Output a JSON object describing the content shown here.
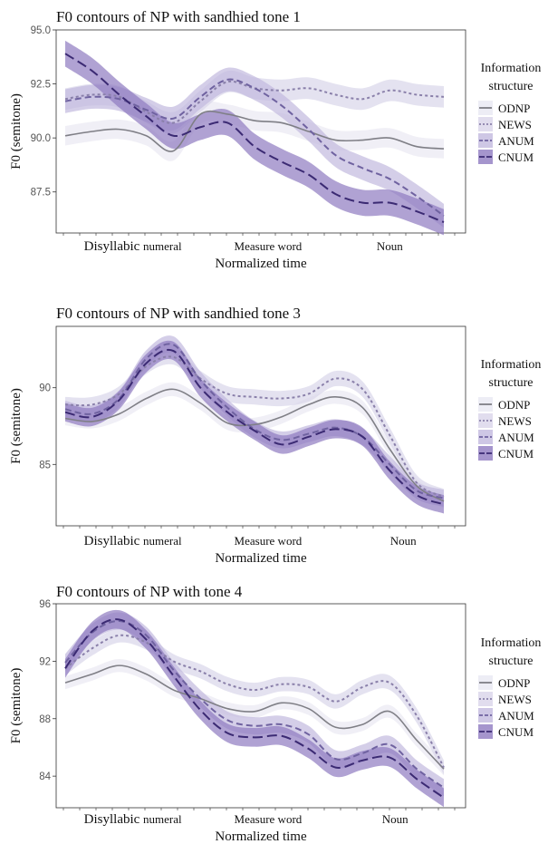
{
  "figure": {
    "legend_title_lines": [
      "Information",
      "structure"
    ],
    "xlabel": "Normalized time",
    "ylabel": "F0 (semitone)",
    "x_categories": [
      "Disyllabic numeral",
      "Measure word",
      "Noun"
    ]
  },
  "series_styles": [
    {
      "name": "ODNP",
      "color": "#7f7f86",
      "ribbon": "#e9e8f2",
      "dash": "solid"
    },
    {
      "name": "NEWS",
      "color": "#8a80aa",
      "ribbon": "#d9d5ea",
      "dash": "dotted"
    },
    {
      "name": "ANUM",
      "color": "#6f62a0",
      "ribbon": "#c2b9de",
      "dash": "dashed"
    },
    {
      "name": "CNUM",
      "color": "#3b2a73",
      "ribbon": "#8e7bc0",
      "dash": "longdash"
    }
  ],
  "chart_data": [
    {
      "type": "line",
      "title": "F0 contours of NP with sandhied tone 1",
      "xlabel": "Normalized time",
      "ylabel": "F0 (semitone)",
      "ylim": [
        85.6,
        95.0
      ],
      "yticks": [
        87.5,
        90.0,
        92.5,
        95.0
      ],
      "ytick_labels": [
        "87.5",
        "90.0",
        "92.5",
        "95.0"
      ],
      "x": [
        0,
        1,
        2,
        3,
        4,
        5,
        6,
        7,
        8,
        9,
        10,
        11,
        12,
        13,
        14
      ],
      "category_positions": [
        2.5,
        7.5,
        12
      ],
      "series": [
        {
          "name": "ODNP",
          "values": [
            90.1,
            90.3,
            90.4,
            90.1,
            89.4,
            91.1,
            91.1,
            90.8,
            90.7,
            90.3,
            89.9,
            89.9,
            90.0,
            89.6,
            89.5
          ],
          "ci": 0.45
        },
        {
          "name": "NEWS",
          "values": [
            91.8,
            92.0,
            91.9,
            91.2,
            90.7,
            91.7,
            92.6,
            92.3,
            92.2,
            92.3,
            92.0,
            91.8,
            92.2,
            92.0,
            91.9
          ],
          "ci": 0.5
        },
        {
          "name": "ANUM",
          "values": [
            91.7,
            91.9,
            91.8,
            91.3,
            90.9,
            91.9,
            92.7,
            92.3,
            91.5,
            90.4,
            89.2,
            88.6,
            88.1,
            87.3,
            86.4
          ],
          "ci": 0.55
        },
        {
          "name": "CNUM",
          "values": [
            93.9,
            93.1,
            92.0,
            91.0,
            90.1,
            90.5,
            90.7,
            89.6,
            88.9,
            88.3,
            87.4,
            87.0,
            87.0,
            86.6,
            86.1
          ],
          "ci": 0.6
        }
      ]
    },
    {
      "type": "line",
      "title": "F0 contours of NP with sandhied tone 3",
      "xlabel": "Normalized time",
      "ylabel": "F0 (semitone)",
      "ylim": [
        81.0,
        94.0
      ],
      "yticks": [
        85,
        90
      ],
      "ytick_labels": [
        "85",
        "90"
      ],
      "x": [
        0,
        1,
        2,
        3,
        4,
        5,
        6,
        7,
        8,
        9,
        10,
        11,
        12,
        13,
        14
      ],
      "category_positions": [
        2.5,
        7.5,
        12.5
      ],
      "series": [
        {
          "name": "ODNP",
          "values": [
            88.0,
            87.8,
            88.3,
            89.3,
            89.9,
            89.0,
            87.7,
            87.6,
            88.1,
            88.9,
            89.4,
            88.7,
            86.0,
            83.6,
            82.6
          ],
          "ci": 0.45
        },
        {
          "name": "NEWS",
          "values": [
            88.9,
            88.9,
            89.6,
            91.4,
            92.0,
            90.6,
            89.6,
            89.4,
            89.3,
            89.6,
            90.6,
            89.9,
            86.9,
            83.8,
            82.9
          ],
          "ci": 0.5
        },
        {
          "name": "ANUM",
          "values": [
            88.6,
            88.3,
            89.3,
            91.9,
            92.8,
            90.5,
            88.7,
            87.3,
            86.6,
            87.0,
            87.4,
            86.8,
            85.0,
            83.3,
            82.8
          ],
          "ci": 0.55
        },
        {
          "name": "CNUM",
          "values": [
            88.4,
            88.1,
            89.2,
            91.6,
            92.4,
            90.0,
            88.4,
            87.2,
            86.3,
            86.8,
            87.3,
            86.8,
            84.6,
            83.0,
            82.4
          ],
          "ci": 0.6
        }
      ]
    },
    {
      "type": "line",
      "title": "F0 contours of NP with tone 4",
      "xlabel": "Normalized time",
      "ylabel": "F0 (semitone)",
      "ylim": [
        81.8,
        96.0
      ],
      "yticks": [
        84,
        88,
        92,
        96
      ],
      "ytick_labels": [
        "84",
        "88",
        "92",
        "96"
      ],
      "x": [
        0,
        1,
        2,
        3,
        4,
        5,
        6,
        7,
        8,
        9,
        10,
        11,
        12,
        13,
        14
      ],
      "category_positions": [
        2.5,
        7.5,
        12.2
      ],
      "series": [
        {
          "name": "ODNP",
          "values": [
            90.5,
            91.1,
            91.7,
            91.1,
            90.0,
            89.4,
            88.7,
            88.5,
            89.1,
            88.7,
            87.4,
            87.6,
            88.5,
            86.5,
            84.5
          ],
          "ci": 0.45
        },
        {
          "name": "NEWS",
          "values": [
            91.5,
            92.9,
            93.8,
            93.3,
            92.0,
            91.3,
            90.4,
            90.0,
            90.4,
            90.2,
            89.2,
            90.2,
            90.5,
            88.2,
            84.6
          ],
          "ci": 0.5
        },
        {
          "name": "ANUM",
          "values": [
            91.9,
            94.0,
            94.8,
            93.8,
            91.4,
            89.4,
            87.9,
            87.5,
            87.6,
            86.9,
            85.2,
            85.6,
            86.2,
            84.5,
            83.2
          ],
          "ci": 0.6
        },
        {
          "name": "CNUM",
          "values": [
            91.5,
            94.1,
            94.9,
            93.5,
            91.0,
            88.6,
            87.0,
            86.7,
            86.8,
            85.9,
            84.6,
            85.1,
            85.3,
            83.8,
            82.5
          ],
          "ci": 0.65
        }
      ]
    }
  ]
}
